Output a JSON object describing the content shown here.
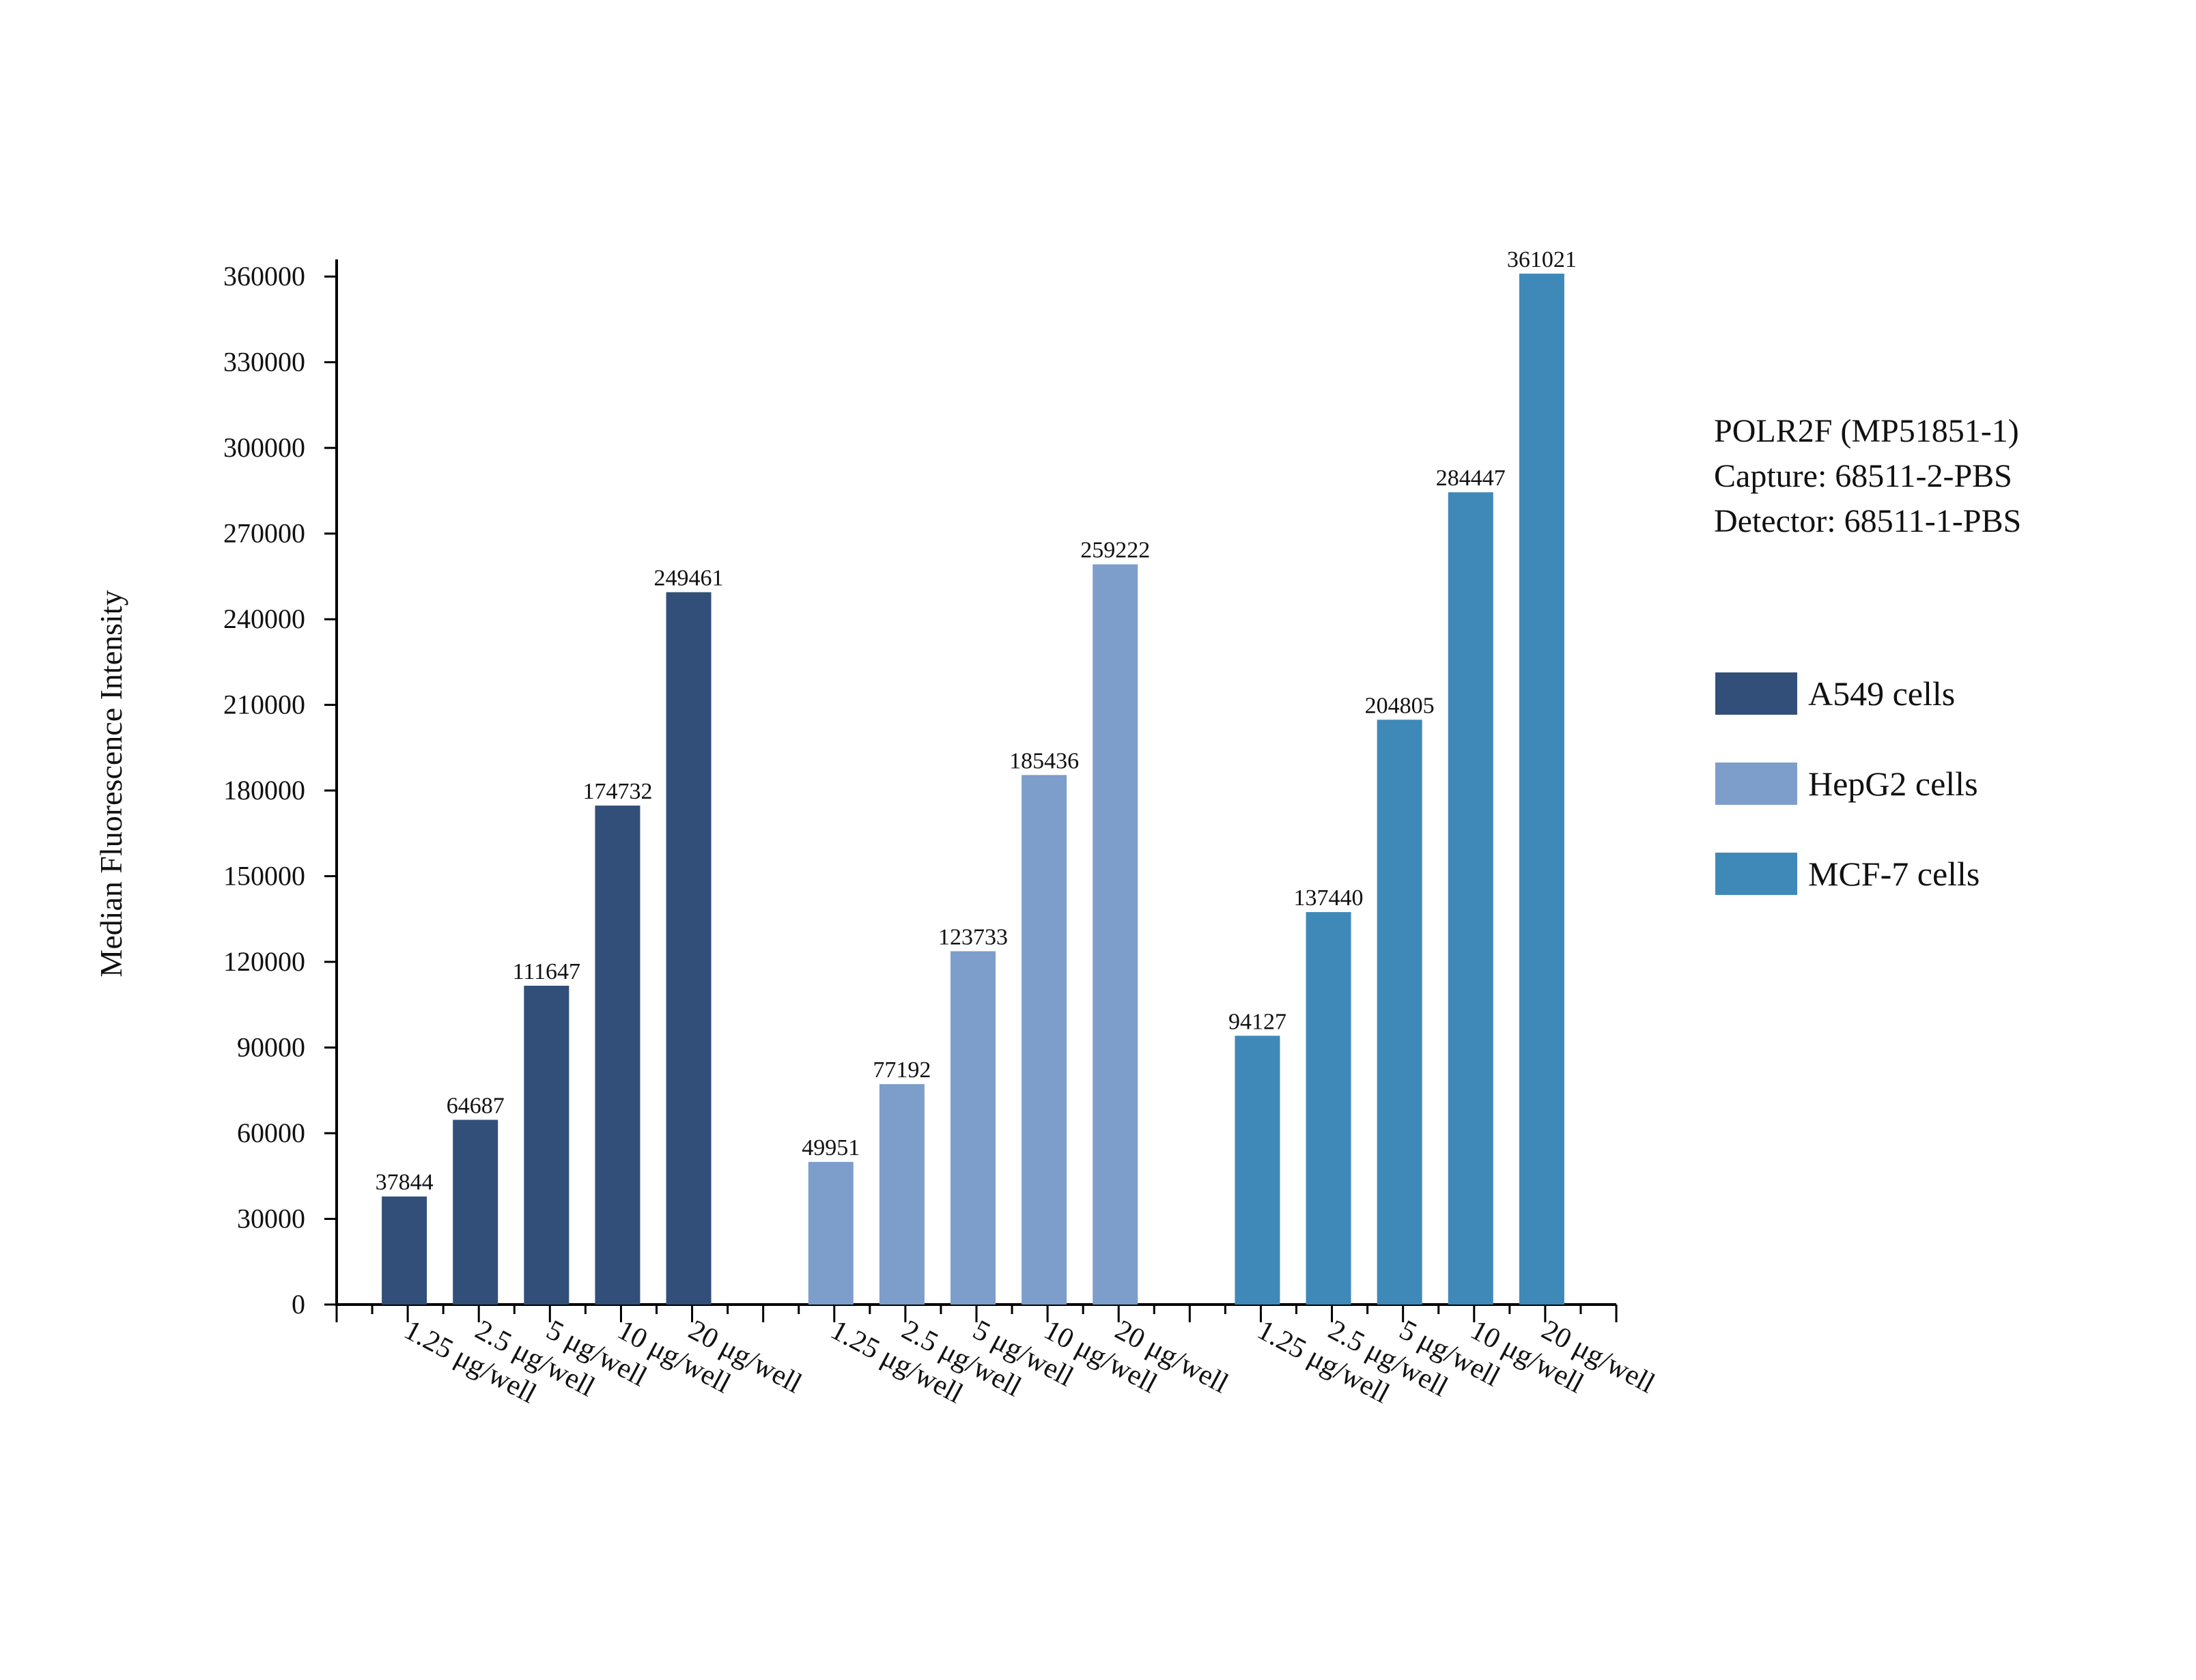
{
  "chart_data": {
    "type": "bar",
    "title": "",
    "xlabel": "",
    "ylabel": "Median Fluorescence Intensity",
    "ylim": [
      0,
      366000
    ],
    "yticks": [
      0,
      30000,
      60000,
      90000,
      120000,
      150000,
      180000,
      210000,
      240000,
      270000,
      300000,
      330000,
      360000
    ],
    "categories": [
      "1.25 μg/well",
      "2.5 μg/well",
      "5 μg/well",
      "10 μg/well",
      "20 μg/well"
    ],
    "grid": false,
    "legend_position": "right",
    "series": [
      {
        "name": "A549 cells",
        "color": "#324f79",
        "values": [
          37844,
          64687,
          111647,
          174732,
          249461
        ]
      },
      {
        "name": "HepG2 cells",
        "color": "#7d9ecb",
        "values": [
          49951,
          77192,
          123733,
          185436,
          259222
        ]
      },
      {
        "name": "MCF-7 cells",
        "color": "#3f89b9",
        "values": [
          94127,
          137440,
          204805,
          284447,
          361021
        ]
      }
    ],
    "annotation": [
      "POLR2F (MP51851-1)",
      "Capture: 68511-2-PBS",
      "Detector: 68511-1-PBS"
    ]
  }
}
